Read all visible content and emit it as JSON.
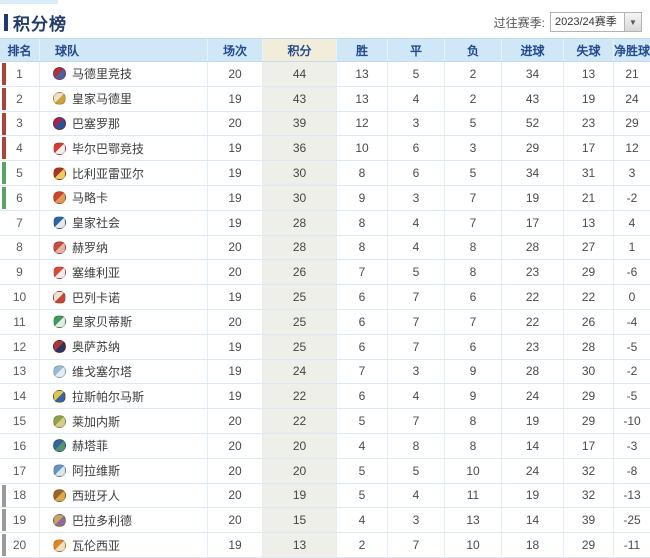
{
  "header": {
    "title": "积分榜",
    "season_label": "过往赛季:",
    "season_value": "2023/24赛季",
    "dropdown_arrow": "▼"
  },
  "colors": {
    "accent": "#203a6a",
    "header_bg": "#cfe7f6",
    "points_header_bg": "#f2ecda",
    "points_cell_bg": "#efefea",
    "zones": {
      "ucl": "#a8443a",
      "uel": "#56a468",
      "releg": "#9b9b9b"
    }
  },
  "table": {
    "columns": [
      "排名",
      "球队",
      "场次",
      "积分",
      "胜",
      "平",
      "负",
      "进球",
      "失球",
      "净胜球"
    ],
    "rows": [
      {
        "rank": "1",
        "team": "马德里竞技",
        "played": "20",
        "points": "44",
        "win": "13",
        "draw": "5",
        "loss": "2",
        "gf": "34",
        "ga": "13",
        "gd": "21",
        "zone": "ucl",
        "logo": [
          "#b53036",
          "#4a5fa5"
        ]
      },
      {
        "rank": "2",
        "team": "皇家马德里",
        "played": "19",
        "points": "43",
        "win": "13",
        "draw": "4",
        "loss": "2",
        "gf": "43",
        "ga": "19",
        "gd": "24",
        "zone": "ucl",
        "logo": [
          "#e9e2c8",
          "#c9a43c"
        ]
      },
      {
        "rank": "3",
        "team": "巴塞罗那",
        "played": "20",
        "points": "39",
        "win": "12",
        "draw": "3",
        "loss": "5",
        "gf": "52",
        "ga": "23",
        "gd": "29",
        "zone": "ucl",
        "logo": [
          "#a6244c",
          "#24549c"
        ]
      },
      {
        "rank": "4",
        "team": "毕尔巴鄂竞技",
        "played": "19",
        "points": "36",
        "win": "10",
        "draw": "6",
        "loss": "3",
        "gf": "29",
        "ga": "17",
        "gd": "12",
        "zone": "ucl",
        "logo": [
          "#d43c34",
          "#f0f0f0"
        ]
      },
      {
        "rank": "5",
        "team": "比利亚雷亚尔",
        "played": "19",
        "points": "30",
        "win": "8",
        "draw": "6",
        "loss": "5",
        "gf": "34",
        "ga": "31",
        "gd": "3",
        "zone": "uel",
        "logo": [
          "#a8342c",
          "#f0cc54"
        ]
      },
      {
        "rank": "6",
        "team": "马略卡",
        "played": "19",
        "points": "30",
        "win": "9",
        "draw": "3",
        "loss": "7",
        "gf": "19",
        "ga": "21",
        "gd": "-2",
        "zone": "uel",
        "logo": [
          "#cc4434",
          "#e09c54"
        ]
      },
      {
        "rank": "7",
        "team": "皇家社会",
        "played": "19",
        "points": "28",
        "win": "8",
        "draw": "4",
        "loss": "7",
        "gf": "17",
        "ga": "13",
        "gd": "4",
        "zone": null,
        "logo": [
          "#2c64a4",
          "#e8e8ec"
        ]
      },
      {
        "rank": "8",
        "team": "赫罗纳",
        "played": "20",
        "points": "28",
        "win": "8",
        "draw": "4",
        "loss": "8",
        "gf": "28",
        "ga": "27",
        "gd": "1",
        "zone": null,
        "logo": [
          "#c44c44",
          "#e8b4a4"
        ]
      },
      {
        "rank": "9",
        "team": "塞维利亚",
        "played": "20",
        "points": "26",
        "win": "7",
        "draw": "5",
        "loss": "8",
        "gf": "23",
        "ga": "29",
        "gd": "-6",
        "zone": null,
        "logo": [
          "#d44c3c",
          "#f4ecec"
        ]
      },
      {
        "rank": "10",
        "team": "巴列卡诺",
        "played": "19",
        "points": "25",
        "win": "6",
        "draw": "7",
        "loss": "6",
        "gf": "22",
        "ga": "22",
        "gd": "0",
        "zone": null,
        "logo": [
          "#ece4d4",
          "#cc4434"
        ]
      },
      {
        "rank": "11",
        "team": "皇家贝蒂斯",
        "played": "20",
        "points": "25",
        "win": "6",
        "draw": "7",
        "loss": "7",
        "gf": "22",
        "ga": "26",
        "gd": "-4",
        "zone": null,
        "logo": [
          "#3c9c5c",
          "#e4ece4"
        ]
      },
      {
        "rank": "12",
        "team": "奥萨苏纳",
        "played": "19",
        "points": "25",
        "win": "6",
        "draw": "7",
        "loss": "6",
        "gf": "23",
        "ga": "28",
        "gd": "-5",
        "zone": null,
        "logo": [
          "#b43434",
          "#2c3464"
        ]
      },
      {
        "rank": "13",
        "team": "维戈塞尔塔",
        "played": "19",
        "points": "24",
        "win": "7",
        "draw": "3",
        "loss": "9",
        "gf": "28",
        "ga": "30",
        "gd": "-2",
        "zone": null,
        "logo": [
          "#94bcd4",
          "#e4ecf4"
        ]
      },
      {
        "rank": "14",
        "team": "拉斯帕尔马斯",
        "played": "19",
        "points": "22",
        "win": "6",
        "draw": "4",
        "loss": "9",
        "gf": "24",
        "ga": "29",
        "gd": "-5",
        "zone": null,
        "logo": [
          "#e4c444",
          "#3464a4"
        ]
      },
      {
        "rank": "15",
        "team": "莱加内斯",
        "played": "20",
        "points": "22",
        "win": "5",
        "draw": "7",
        "loss": "8",
        "gf": "19",
        "ga": "29",
        "gd": "-10",
        "zone": null,
        "logo": [
          "#8aa44c",
          "#d8cc8c"
        ]
      },
      {
        "rank": "16",
        "team": "赫塔菲",
        "played": "20",
        "points": "20",
        "win": "4",
        "draw": "8",
        "loss": "8",
        "gf": "14",
        "ga": "17",
        "gd": "-3",
        "zone": null,
        "logo": [
          "#34649c",
          "#54946c"
        ]
      },
      {
        "rank": "17",
        "team": "阿拉维斯",
        "played": "20",
        "points": "20",
        "win": "5",
        "draw": "5",
        "loss": "10",
        "gf": "24",
        "ga": "32",
        "gd": "-8",
        "zone": null,
        "logo": [
          "#6494c4",
          "#dce4ec"
        ]
      },
      {
        "rank": "18",
        "team": "西班牙人",
        "played": "20",
        "points": "19",
        "win": "5",
        "draw": "4",
        "loss": "11",
        "gf": "19",
        "ga": "32",
        "gd": "-13",
        "zone": "releg",
        "logo": [
          "#9c642c",
          "#d8ac4c"
        ]
      },
      {
        "rank": "19",
        "team": "巴拉多利德",
        "played": "20",
        "points": "15",
        "win": "4",
        "draw": "3",
        "loss": "13",
        "gf": "14",
        "ga": "39",
        "gd": "-25",
        "zone": "releg",
        "logo": [
          "#c8a858",
          "#8c6ca0"
        ]
      },
      {
        "rank": "20",
        "team": "瓦伦西亚",
        "played": "19",
        "points": "13",
        "win": "2",
        "draw": "7",
        "loss": "10",
        "gf": "18",
        "ga": "29",
        "gd": "-11",
        "zone": "releg",
        "logo": [
          "#e08424",
          "#f0e0c0"
        ]
      }
    ]
  }
}
